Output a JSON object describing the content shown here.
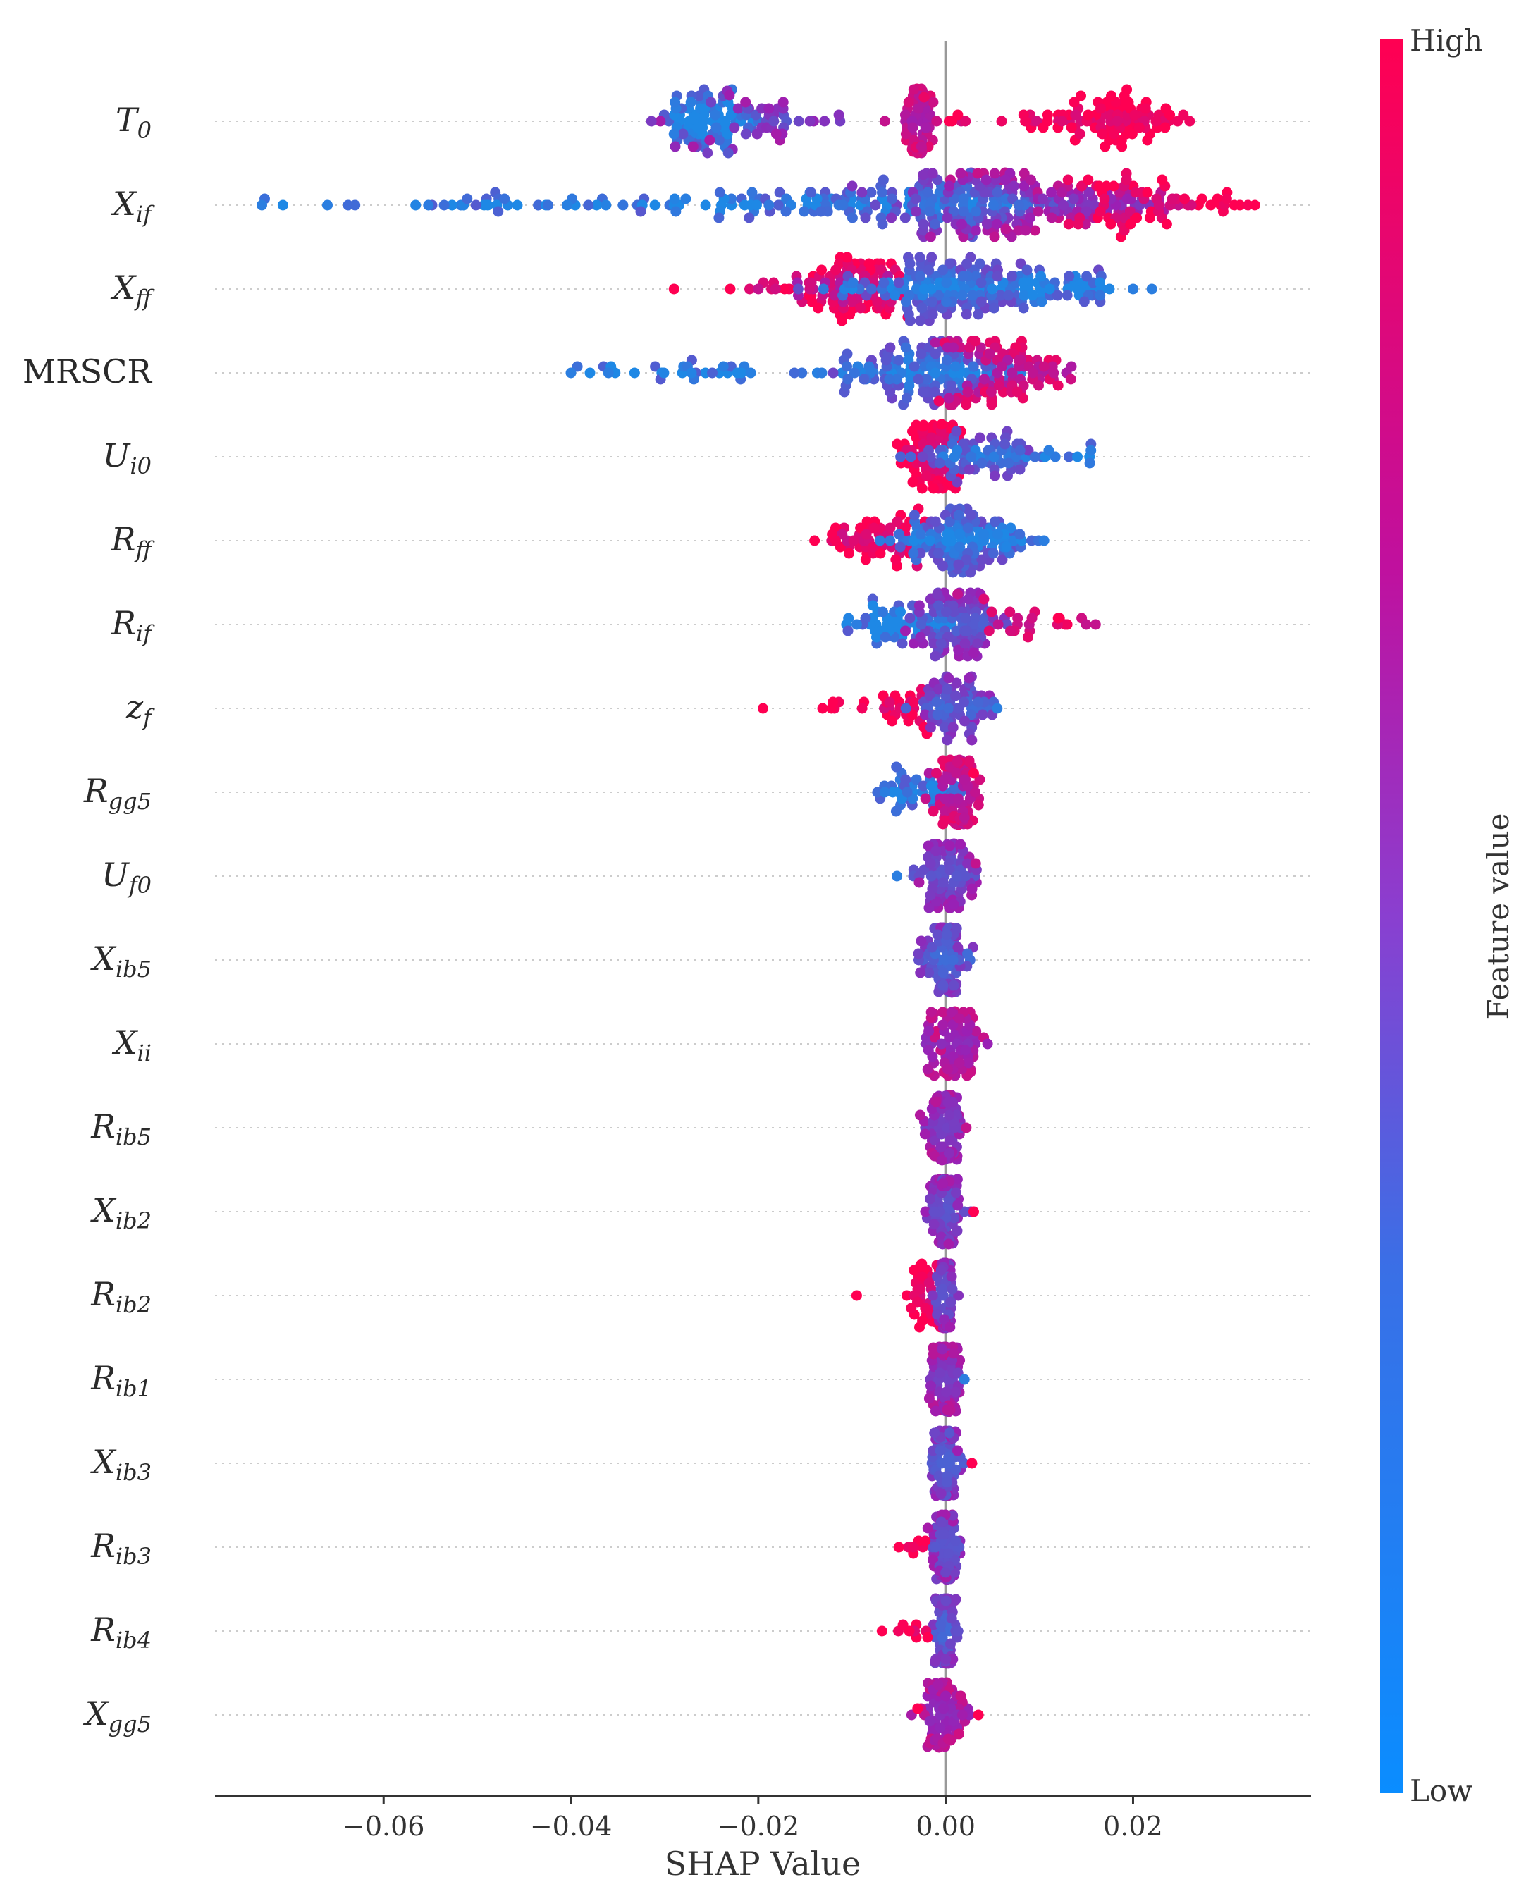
{
  "colors": {
    "low": "#1e88e5",
    "mid": "#9b1fb4",
    "high": "#ff0052",
    "zero_line": "#999999",
    "row_line": "#cccccc",
    "axis": "#333333"
  },
  "chart_data": {
    "type": "scatter",
    "subtype": "shap-beeswarm",
    "xlabel": "SHAP Value",
    "xlim": [
      -0.078,
      0.039
    ],
    "xticks": [
      -0.06,
      -0.04,
      -0.02,
      0.0,
      0.02
    ],
    "xtick_labels": [
      "−0.06",
      "−0.04",
      "−0.02",
      "0.00",
      "0.02"
    ],
    "colorbar": {
      "label": "Feature value",
      "high_label": "High",
      "low_label": "Low"
    },
    "features": [
      {
        "name": "T",
        "sub": "0",
        "italic": true
      },
      {
        "name": "X",
        "sub": "if",
        "italic": true
      },
      {
        "name": "X",
        "sub": "ff",
        "italic": true
      },
      {
        "name": "MRSCR",
        "sub": "",
        "italic": false
      },
      {
        "name": "U",
        "sub": "i0",
        "italic": true
      },
      {
        "name": "R",
        "sub": "ff",
        "italic": true
      },
      {
        "name": "R",
        "sub": "if",
        "italic": true
      },
      {
        "name": "z",
        "sub": "f",
        "italic": true
      },
      {
        "name": "R",
        "sub": "gg5",
        "italic": true
      },
      {
        "name": "U",
        "sub": "f0",
        "italic": true
      },
      {
        "name": "X",
        "sub": "ib5",
        "italic": true
      },
      {
        "name": "X",
        "sub": "ii",
        "italic": true
      },
      {
        "name": "R",
        "sub": "ib5",
        "italic": true
      },
      {
        "name": "X",
        "sub": "ib2",
        "italic": true
      },
      {
        "name": "R",
        "sub": "ib2",
        "italic": true
      },
      {
        "name": "R",
        "sub": "ib1",
        "italic": true
      },
      {
        "name": "X",
        "sub": "ib3",
        "italic": true
      },
      {
        "name": "R",
        "sub": "ib3",
        "italic": true
      },
      {
        "name": "R",
        "sub": "ib4",
        "italic": true
      },
      {
        "name": "X",
        "sub": "gg5",
        "italic": true
      }
    ],
    "clusters": [
      {
        "f": 0,
        "x": -0.0255,
        "w": 0.0025,
        "n": 70,
        "c": 0.05
      },
      {
        "f": 0,
        "x": -0.02,
        "w": 0.004,
        "n": 45,
        "c": 0.4
      },
      {
        "f": 0,
        "x": -0.003,
        "w": 0.0008,
        "n": 55,
        "c": 0.7
      },
      {
        "f": 0,
        "x": 0.0005,
        "w": 0.001,
        "n": 6,
        "c": 0.95
      },
      {
        "f": 0,
        "x": 0.013,
        "w": 0.0035,
        "n": 30,
        "c": 0.95
      },
      {
        "f": 0,
        "x": 0.0195,
        "w": 0.0025,
        "n": 60,
        "c": 1.0
      },
      {
        "f": 1,
        "x": -0.045,
        "w": 0.014,
        "n": 45,
        "c": 0.05
      },
      {
        "f": 1,
        "x": -0.012,
        "w": 0.008,
        "n": 80,
        "c": 0.08
      },
      {
        "f": 1,
        "x": 0.002,
        "w": 0.005,
        "n": 120,
        "c": 0.25
      },
      {
        "f": 1,
        "x": 0.011,
        "w": 0.006,
        "n": 110,
        "c": 0.55
      },
      {
        "f": 1,
        "x": 0.023,
        "w": 0.005,
        "n": 60,
        "c": 0.95
      },
      {
        "f": 2,
        "x": -0.01,
        "w": 0.003,
        "n": 70,
        "c": 0.9
      },
      {
        "f": 2,
        "x": -0.015,
        "w": 0.004,
        "n": 18,
        "c": 0.7
      },
      {
        "f": 2,
        "x": 0.0,
        "w": 0.006,
        "n": 150,
        "c": 0.15
      },
      {
        "f": 2,
        "x": 0.012,
        "w": 0.005,
        "n": 35,
        "c": 0.05
      },
      {
        "f": 3,
        "x": -0.022,
        "w": 0.008,
        "n": 35,
        "c": 0.05
      },
      {
        "f": 3,
        "x": -0.002,
        "w": 0.005,
        "n": 120,
        "c": 0.15
      },
      {
        "f": 3,
        "x": 0.006,
        "w": 0.0035,
        "n": 90,
        "c": 0.75
      },
      {
        "f": 4,
        "x": -0.0015,
        "w": 0.0018,
        "n": 70,
        "c": 0.95
      },
      {
        "f": 4,
        "x": 0.005,
        "w": 0.004,
        "n": 70,
        "c": 0.2
      },
      {
        "f": 4,
        "x": 0.014,
        "w": 0.002,
        "n": 6,
        "c": 0.05
      },
      {
        "f": 5,
        "x": -0.008,
        "w": 0.003,
        "n": 50,
        "c": 0.9
      },
      {
        "f": 5,
        "x": 0.001,
        "w": 0.003,
        "n": 110,
        "c": 0.15
      },
      {
        "f": 5,
        "x": 0.007,
        "w": 0.002,
        "n": 15,
        "c": 0.05
      },
      {
        "f": 6,
        "x": -0.005,
        "w": 0.003,
        "n": 45,
        "c": 0.05
      },
      {
        "f": 6,
        "x": 0.001,
        "w": 0.0025,
        "n": 90,
        "c": 0.35
      },
      {
        "f": 6,
        "x": 0.008,
        "w": 0.003,
        "n": 20,
        "c": 0.85
      },
      {
        "f": 7,
        "x": -0.005,
        "w": 0.002,
        "n": 25,
        "c": 0.95
      },
      {
        "f": 7,
        "x": -0.012,
        "w": 0.001,
        "n": 5,
        "c": 1.0
      },
      {
        "f": 7,
        "x": 0.001,
        "w": 0.002,
        "n": 70,
        "c": 0.3
      },
      {
        "f": 8,
        "x": -0.003,
        "w": 0.002,
        "n": 35,
        "c": 0.05
      },
      {
        "f": 8,
        "x": 0.001,
        "w": 0.0015,
        "n": 80,
        "c": 0.75
      },
      {
        "f": 9,
        "x": 0.0,
        "w": 0.0015,
        "n": 80,
        "c": 0.4
      },
      {
        "f": 10,
        "x": 0.0,
        "w": 0.0013,
        "n": 80,
        "c": 0.3
      },
      {
        "f": 11,
        "x": 0.0005,
        "w": 0.0015,
        "n": 80,
        "c": 0.6
      },
      {
        "f": 12,
        "x": 0.0,
        "w": 0.001,
        "n": 80,
        "c": 0.5
      },
      {
        "f": 13,
        "x": 0.0,
        "w": 0.001,
        "n": 80,
        "c": 0.4
      },
      {
        "f": 14,
        "x": -0.002,
        "w": 0.001,
        "n": 35,
        "c": 0.95
      },
      {
        "f": 14,
        "x": 0.0,
        "w": 0.0006,
        "n": 60,
        "c": 0.4
      },
      {
        "f": 15,
        "x": 0.0,
        "w": 0.0008,
        "n": 80,
        "c": 0.5
      },
      {
        "f": 16,
        "x": 0.0,
        "w": 0.0009,
        "n": 80,
        "c": 0.35
      },
      {
        "f": 17,
        "x": 0.0,
        "w": 0.0008,
        "n": 70,
        "c": 0.4
      },
      {
        "f": 17,
        "x": -0.0035,
        "w": 0.001,
        "n": 6,
        "c": 0.95
      },
      {
        "f": 18,
        "x": 0.0,
        "w": 0.0006,
        "n": 70,
        "c": 0.3
      },
      {
        "f": 18,
        "x": -0.003,
        "w": 0.001,
        "n": 8,
        "c": 1.0
      },
      {
        "f": 19,
        "x": 0.0,
        "w": 0.0012,
        "n": 80,
        "c": 0.6
      }
    ],
    "points": [
      {
        "f": 0,
        "x": -0.029,
        "c": 0.05
      },
      {
        "f": 0,
        "x": -0.0145,
        "c": 0.4
      },
      {
        "f": 0,
        "x": -0.0065,
        "c": 0.7
      },
      {
        "f": 0,
        "x": 0.0085,
        "c": 0.95
      },
      {
        "f": 0,
        "x": 0.0235,
        "c": 1.0
      },
      {
        "f": 1,
        "x": -0.073,
        "c": 0.05
      },
      {
        "f": 1,
        "x": -0.066,
        "c": 0.05
      },
      {
        "f": 1,
        "x": 0.033,
        "c": 1.0
      },
      {
        "f": 1,
        "x": 0.03,
        "c": 0.95
      },
      {
        "f": 2,
        "x": -0.029,
        "c": 1.0
      },
      {
        "f": 2,
        "x": -0.023,
        "c": 1.0
      },
      {
        "f": 2,
        "x": -0.02,
        "c": 0.7
      },
      {
        "f": 2,
        "x": 0.022,
        "c": 0.05
      },
      {
        "f": 2,
        "x": 0.02,
        "c": 0.05
      },
      {
        "f": 3,
        "x": -0.04,
        "c": 0.05
      },
      {
        "f": 3,
        "x": -0.036,
        "c": 0.05
      },
      {
        "f": 3,
        "x": 0.012,
        "c": 0.9
      },
      {
        "f": 4,
        "x": 0.0155,
        "c": 0.05
      },
      {
        "f": 4,
        "x": 0.011,
        "c": 0.05
      },
      {
        "f": 5,
        "x": -0.014,
        "c": 1.0
      },
      {
        "f": 5,
        "x": 0.0105,
        "c": 0.05
      },
      {
        "f": 6,
        "x": -0.0095,
        "c": 0.05
      },
      {
        "f": 6,
        "x": 0.012,
        "c": 1.0
      },
      {
        "f": 6,
        "x": 0.015,
        "c": 0.7
      },
      {
        "f": 6,
        "x": 0.016,
        "c": 0.7
      },
      {
        "f": 7,
        "x": -0.0195,
        "c": 1.0
      },
      {
        "f": 7,
        "x": 0.0055,
        "c": 0.05
      },
      {
        "f": 8,
        "x": 0.003,
        "c": 1.0
      },
      {
        "f": 8,
        "x": -0.0065,
        "c": 0.05
      },
      {
        "f": 9,
        "x": -0.0052,
        "c": 0.05
      },
      {
        "f": 9,
        "x": 0.0032,
        "c": 0.7
      },
      {
        "f": 12,
        "x": 0.0022,
        "c": 0.7
      },
      {
        "f": 13,
        "x": 0.003,
        "c": 1.0
      },
      {
        "f": 14,
        "x": -0.0095,
        "c": 1.0
      },
      {
        "f": 15,
        "x": 0.002,
        "c": 0.05
      },
      {
        "f": 16,
        "x": 0.0028,
        "c": 1.0
      },
      {
        "f": 17,
        "x": -0.005,
        "c": 1.0
      },
      {
        "f": 18,
        "x": -0.0068,
        "c": 1.0
      },
      {
        "f": 19,
        "x": 0.0035,
        "c": 1.0
      },
      {
        "f": 19,
        "x": -0.003,
        "c": 1.0
      }
    ]
  }
}
